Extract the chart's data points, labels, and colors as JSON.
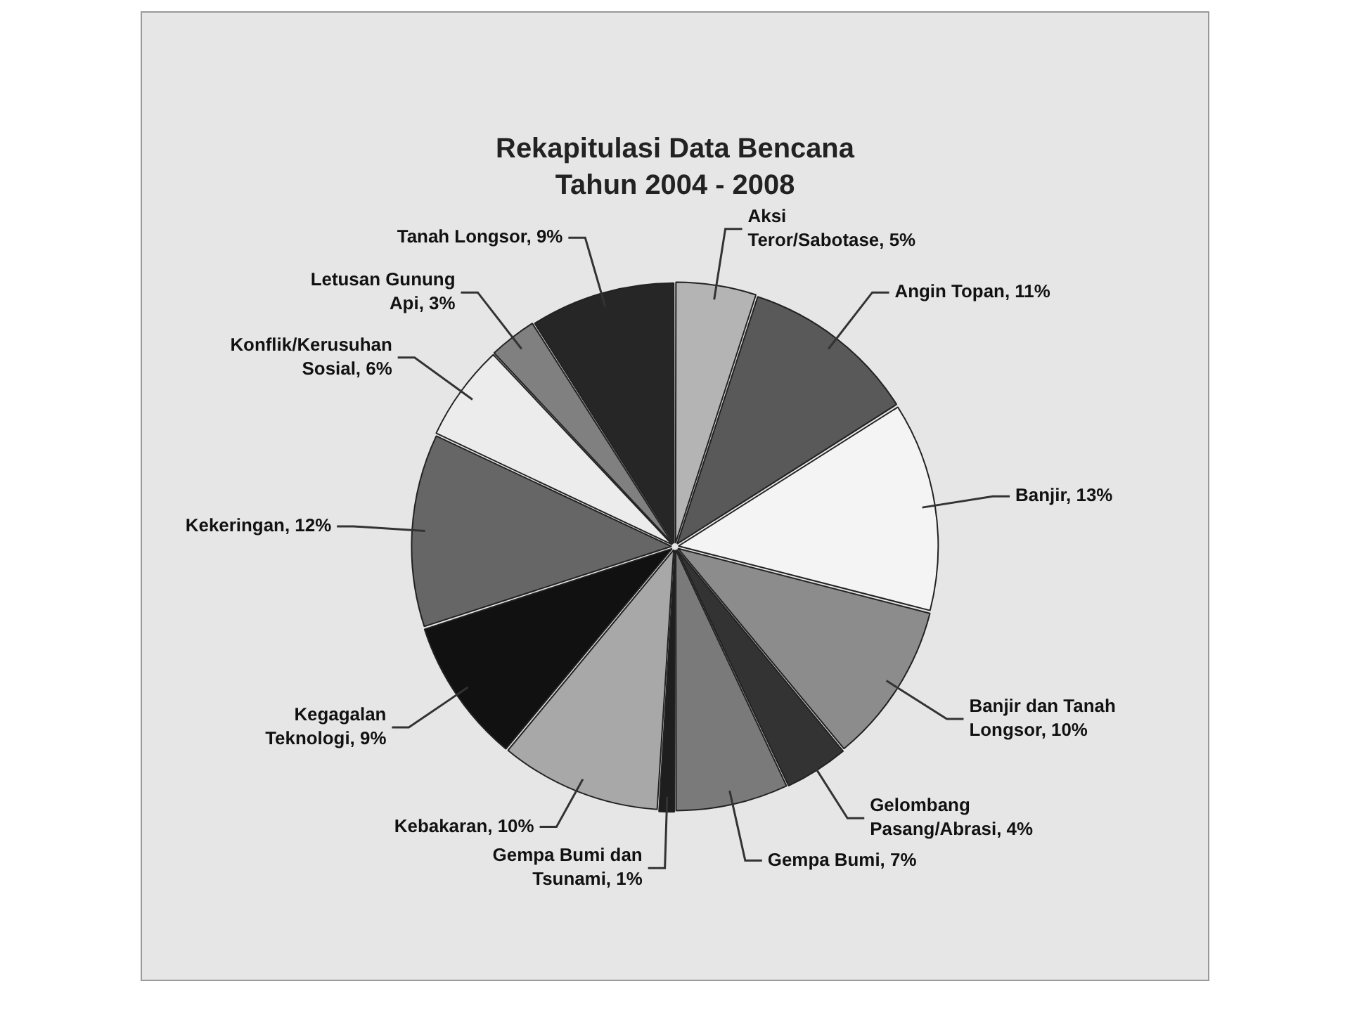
{
  "chart_data": {
    "type": "pie",
    "title": "Rekapitulasi Data Bencana",
    "subtitle": "Tahun 2004 - 2008",
    "categories": [
      "Aksi Teror/Sabotase",
      "Angin Topan",
      "Banjir",
      "Banjir dan Tanah Longsor",
      "Gelombang Pasang/Abrasi",
      "Gempa Bumi",
      "Gempa Bumi dan Tsunami",
      "Kebakaran",
      "Kegagalan Teknologi",
      "Kekeringan",
      "Konflik/Kerusuhan Sosial",
      "Letusan Gunung Api",
      "Tanah Longsor"
    ],
    "values": [
      5,
      11,
      13,
      10,
      4,
      7,
      1,
      10,
      9,
      12,
      6,
      3,
      9
    ],
    "value_labels": [
      "5%",
      "11%",
      "13%",
      "10%",
      "4%",
      "7%",
      "1%",
      "10%",
      "9%",
      "12%",
      "6%",
      "3%",
      "9%"
    ],
    "colors": [
      "#b4b4b4",
      "#595959",
      "#f4f4f4",
      "#8c8c8c",
      "#333333",
      "#7a7a7a",
      "#1e1e1e",
      "#a8a8a8",
      "#111111",
      "#666666",
      "#ececec",
      "#808080",
      "#262626"
    ],
    "legend": false
  }
}
